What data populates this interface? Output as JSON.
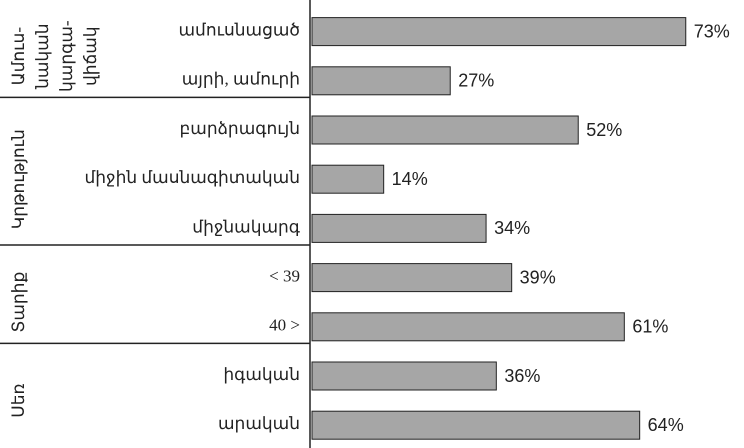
{
  "chart_data": {
    "type": "bar",
    "orientation": "horizontal",
    "color": "#a6a6a6",
    "groups": [
      {
        "label_lines": [
          "Ամուս-",
          "նական",
          "կարգա-",
          "վիճակ"
        ],
        "categories": [
          "ամուսնացած",
          "այրի, ամուրի"
        ],
        "values": [
          73,
          27
        ],
        "value_labels": [
          "73%",
          "27%"
        ]
      },
      {
        "label_lines": [
          "Կրթություն"
        ],
        "categories": [
          "բարձրագույն",
          "միջին մասնագիտական",
          "միջնակարգ"
        ],
        "values": [
          52,
          14,
          34
        ],
        "value_labels": [
          "52%",
          "14%",
          "34%"
        ]
      },
      {
        "label_lines": [
          "Տարիք"
        ],
        "categories": [
          "< 39",
          "40 >"
        ],
        "values": [
          39,
          61
        ],
        "value_labels": [
          "39%",
          "61%"
        ]
      },
      {
        "label_lines": [
          "Սեռ"
        ],
        "categories": [
          "իգական",
          "արական"
        ],
        "values": [
          36,
          64
        ],
        "value_labels": [
          "36%",
          "64%"
        ]
      }
    ]
  }
}
